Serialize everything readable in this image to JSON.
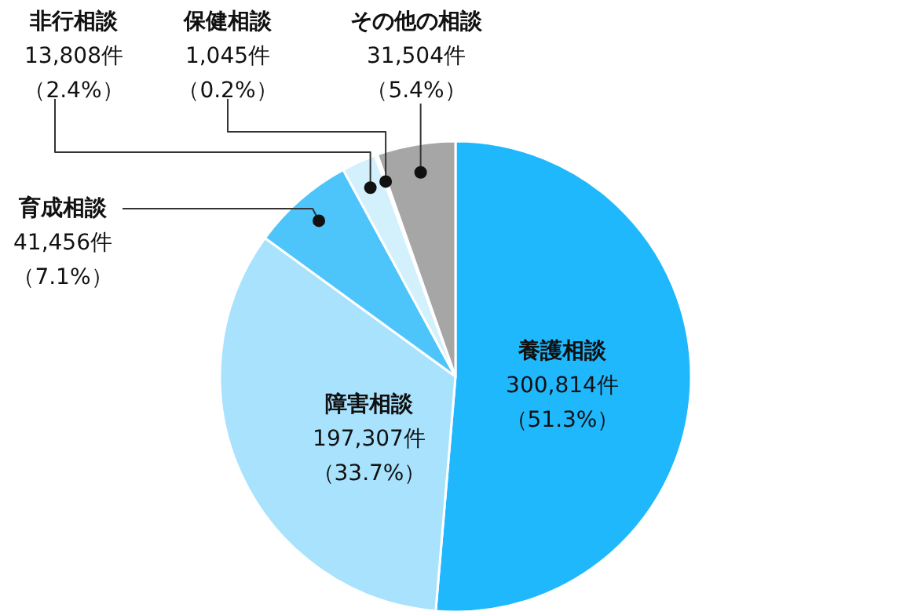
{
  "chart_data": {
    "type": "pie",
    "categories": [
      "養護相談",
      "障害相談",
      "育成相談",
      "非行相談",
      "保健相談",
      "その他の相談"
    ],
    "values": [
      300814,
      197307,
      41456,
      13808,
      1045,
      31504
    ],
    "colors": [
      "#1fb8fd",
      "#a8e2fd",
      "#4dc5fb",
      "#d3f0fd",
      "#eef9fe",
      "#a6a6a6"
    ],
    "value_labels": [
      "300,814件（51.3%）",
      "197,307件（33.7%）",
      "41,456件（7.1%）",
      "13,808件（2.4%）",
      "1,045件（0.2%）",
      "31,504件（5.4%）"
    ]
  }
}
